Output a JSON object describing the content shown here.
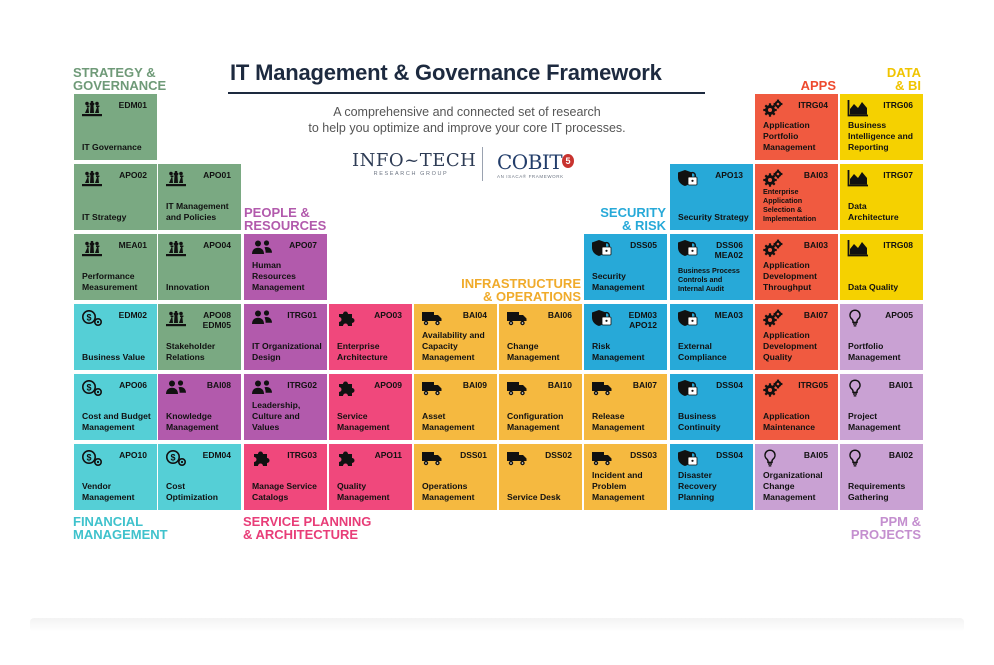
{
  "title": "IT Management & Governance Framework",
  "subtitle_line1": "A comprehensive and connected set of research",
  "subtitle_line2": "to help you optimize and improve your core IT processes.",
  "logos": {
    "infotech_main": "INFO~TECH",
    "infotech_sub": "RESEARCH GROUP",
    "cobit_main": "COBIT",
    "cobit_version": "5",
    "cobit_sub": "AN ISACA® FRAMEWORK"
  },
  "colors": {
    "strategy": "#7aa982",
    "financial": "#55cfd6",
    "people": "#b25aac",
    "service_planning": "#f0487c",
    "infrastructure": "#f5b940",
    "security": "#27a9d8",
    "apps": "#f05a40",
    "data": "#f5d100",
    "ppm": "#c9a1d3",
    "cat_strategy": "#6f9a78",
    "cat_financial": "#3fc2cc",
    "cat_people": "#b25aac",
    "cat_service": "#e83d78",
    "cat_infra": "#f0ab2b",
    "cat_security": "#27a9d8",
    "cat_apps": "#ee4a2e",
    "cat_data": "#f0c400",
    "cat_ppm": "#c48fcf"
  },
  "categories": [
    {
      "id": "strategy",
      "line1": "STRATEGY &",
      "line2": "GOVERNANCE"
    },
    {
      "id": "people",
      "line1": "PEOPLE &",
      "line2": "RESOURCES"
    },
    {
      "id": "infra",
      "line1": "INFRASTRUCTURE",
      "line2": "& OPERATIONS"
    },
    {
      "id": "security",
      "line1": "SECURITY",
      "line2": "& RISK"
    },
    {
      "id": "apps",
      "line1": "APPS",
      "line2": ""
    },
    {
      "id": "data",
      "line1": "DATA",
      "line2": "& BI"
    },
    {
      "id": "financial",
      "line1": "FINANCIAL",
      "line2": "MANAGEMENT"
    },
    {
      "id": "service",
      "line1": "SERVICE PLANNING",
      "line2": "& ARCHITECTURE"
    },
    {
      "id": "ppm",
      "line1": "PPM &",
      "line2": "PROJECTS"
    }
  ],
  "tiles": [
    {
      "group": "strategy",
      "icon": "chess-icon",
      "code": "EDM01",
      "code2": "",
      "name": "IT Governance",
      "small": false
    },
    {
      "group": "strategy",
      "icon": "chess-icon",
      "code": "APO02",
      "code2": "",
      "name": "IT Strategy",
      "small": false
    },
    {
      "group": "strategy",
      "icon": "chess-icon",
      "code": "APO01",
      "code2": "",
      "name": "IT Management and Policies",
      "small": false
    },
    {
      "group": "strategy",
      "icon": "chess-icon",
      "code": "MEA01",
      "code2": "",
      "name": "Performance Measurement",
      "small": false
    },
    {
      "group": "strategy",
      "icon": "chess-icon",
      "code": "APO04",
      "code2": "",
      "name": "Innovation",
      "small": false
    },
    {
      "group": "strategy",
      "icon": "chess-icon",
      "code": "APO08",
      "code2": "EDM05",
      "name": "Stakeholder Relations",
      "small": false
    },
    {
      "group": "financial",
      "icon": "money-gear-icon",
      "code": "EDM02",
      "code2": "",
      "name": "Business Value",
      "small": false
    },
    {
      "group": "financial",
      "icon": "money-gear-icon",
      "code": "APO06",
      "code2": "",
      "name": "Cost and Budget Management",
      "small": false
    },
    {
      "group": "financial",
      "icon": "money-gear-icon",
      "code": "APO10",
      "code2": "",
      "name": "Vendor Management",
      "small": false
    },
    {
      "group": "financial",
      "icon": "money-gear-icon",
      "code": "EDM04",
      "code2": "",
      "name": "Cost Optimization",
      "small": false
    },
    {
      "group": "people",
      "icon": "people-icon",
      "code": "BAI08",
      "code2": "",
      "name": "Knowledge Management",
      "small": false
    },
    {
      "group": "people",
      "icon": "people-icon",
      "code": "APO07",
      "code2": "",
      "name": "Human Resources Management",
      "small": false
    },
    {
      "group": "people",
      "icon": "people-icon",
      "code": "ITRG01",
      "code2": "",
      "name": "IT Organizational Design",
      "small": false
    },
    {
      "group": "people",
      "icon": "people-icon",
      "code": "ITRG02",
      "code2": "",
      "name": "Leadership, Culture and Values",
      "small": false
    },
    {
      "group": "service_planning",
      "icon": "puzzle-icon",
      "code": "ITRG03",
      "code2": "",
      "name": "Manage Service Catalogs",
      "small": false
    },
    {
      "group": "service_planning",
      "icon": "puzzle-icon",
      "code": "APO03",
      "code2": "",
      "name": "Enterprise Architecture",
      "small": false
    },
    {
      "group": "service_planning",
      "icon": "puzzle-icon",
      "code": "APO09",
      "code2": "",
      "name": "Service Management",
      "small": false
    },
    {
      "group": "service_planning",
      "icon": "puzzle-icon",
      "code": "APO11",
      "code2": "",
      "name": "Quality Management",
      "small": false
    },
    {
      "group": "infrastructure",
      "icon": "truck-icon",
      "code": "BAI04",
      "code2": "",
      "name": "Availability and Capacity Management",
      "small": false
    },
    {
      "group": "infrastructure",
      "icon": "truck-icon",
      "code": "BAI09",
      "code2": "",
      "name": "Asset Management",
      "small": false
    },
    {
      "group": "infrastructure",
      "icon": "truck-icon",
      "code": "DSS01",
      "code2": "",
      "name": "Operations Management",
      "small": false
    },
    {
      "group": "infrastructure",
      "icon": "truck-icon",
      "code": "BAI06",
      "code2": "",
      "name": "Change Management",
      "small": false
    },
    {
      "group": "infrastructure",
      "icon": "truck-icon",
      "code": "BAI10",
      "code2": "",
      "name": "Configuration Management",
      "small": false
    },
    {
      "group": "infrastructure",
      "icon": "truck-icon",
      "code": "DSS02",
      "code2": "",
      "name": "Service Desk",
      "small": false
    },
    {
      "group": "infrastructure",
      "icon": "truck-icon",
      "code": "BAI07",
      "code2": "",
      "name": "Release Management",
      "small": false
    },
    {
      "group": "infrastructure",
      "icon": "truck-icon",
      "code": "DSS03",
      "code2": "",
      "name": "Incident and Problem Management",
      "small": false
    },
    {
      "group": "security",
      "icon": "shield-lock-icon",
      "code": "DSS05",
      "code2": "",
      "name": "Security Management",
      "small": false
    },
    {
      "group": "security",
      "icon": "shield-lock-icon",
      "code": "EDM03",
      "code2": "APO12",
      "name": "Risk Management",
      "small": false
    },
    {
      "group": "security",
      "icon": "shield-lock-icon",
      "code": "APO13",
      "code2": "",
      "name": "Security Strategy",
      "small": false
    },
    {
      "group": "security",
      "icon": "shield-lock-icon",
      "code": "DSS06",
      "code2": "MEA02",
      "name": "Business Process Controls and Internal Audit",
      "small": true
    },
    {
      "group": "security",
      "icon": "shield-lock-icon",
      "code": "MEA03",
      "code2": "",
      "name": "External Compliance",
      "small": false
    },
    {
      "group": "security",
      "icon": "shield-lock-icon",
      "code": "DSS04",
      "code2": "",
      "name": "Business Continuity",
      "small": false
    },
    {
      "group": "security",
      "icon": "shield-lock-icon",
      "code": "DSS04",
      "code2": "",
      "name": "Disaster Recovery Planning",
      "small": false
    },
    {
      "group": "apps",
      "icon": "gears-icon",
      "code": "ITRG04",
      "code2": "",
      "name": "Application Portfolio Management",
      "small": false
    },
    {
      "group": "apps",
      "icon": "gears-icon",
      "code": "BAI03",
      "code2": "",
      "name": "Enterprise Application Selection & Implementation",
      "small": true
    },
    {
      "group": "apps",
      "icon": "gears-icon",
      "code": "BAI03",
      "code2": "",
      "name": "Application Development Throughput",
      "small": false
    },
    {
      "group": "apps",
      "icon": "gears-icon",
      "code": "BAI07",
      "code2": "",
      "name": "Application Development Quality",
      "small": false
    },
    {
      "group": "apps",
      "icon": "gears-icon",
      "code": "ITRG05",
      "code2": "",
      "name": "Application Maintenance",
      "small": false
    },
    {
      "group": "ppm",
      "icon": "lightbulb-icon",
      "code": "BAI05",
      "code2": "",
      "name": "Organizational Change Management",
      "small": false
    },
    {
      "group": "data",
      "icon": "area-chart-icon",
      "code": "ITRG06",
      "code2": "",
      "name": "Business Intelligence and Reporting",
      "small": false
    },
    {
      "group": "data",
      "icon": "area-chart-icon",
      "code": "ITRG07",
      "code2": "",
      "name": "Data Architecture",
      "small": false
    },
    {
      "group": "data",
      "icon": "area-chart-icon",
      "code": "ITRG08",
      "code2": "",
      "name": "Data Quality",
      "small": false
    },
    {
      "group": "ppm",
      "icon": "lightbulb-icon",
      "code": "APO05",
      "code2": "",
      "name": "Portfolio Management",
      "small": false
    },
    {
      "group": "ppm",
      "icon": "lightbulb-icon",
      "code": "BAI01",
      "code2": "",
      "name": "Project Management",
      "small": false
    },
    {
      "group": "ppm",
      "icon": "lightbulb-icon",
      "code": "BAI02",
      "code2": "",
      "name": "Requirements Gathering",
      "small": false
    }
  ]
}
